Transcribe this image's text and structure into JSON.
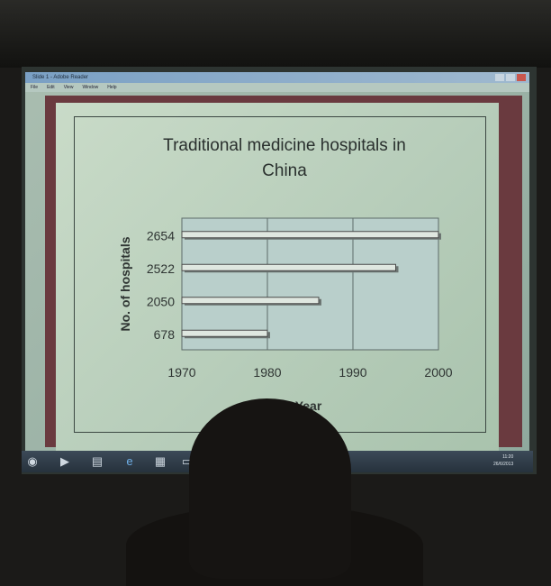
{
  "window": {
    "title": "Slide 1 - Adobe Reader",
    "menu": [
      "File",
      "Edit",
      "View",
      "Window",
      "Help"
    ]
  },
  "slide": {
    "title_line1": "Traditional medicine hospitals in",
    "title_line2": "China"
  },
  "chart_data": {
    "type": "bar",
    "orientation": "horizontal",
    "title": "Traditional medicine hospitals in China",
    "xlabel": "Year",
    "ylabel": "No. of hospitals",
    "xlim": [
      1970,
      2000
    ],
    "xticks": [
      1970,
      1980,
      1990,
      2000
    ],
    "categories": [
      "678",
      "2050",
      "2522",
      "2654"
    ],
    "values": [
      1980,
      1986,
      1995,
      2000
    ],
    "grid": true,
    "colors": {
      "bar": "#dfe7e0",
      "bar_edge": "#4a4a4a",
      "plot_bg": "#b9cfcb"
    }
  },
  "taskbar": {
    "icons": [
      "start-orb-icon",
      "media-player-icon",
      "folder-icon",
      "internet-explorer-icon",
      "paint-icon",
      "document-icon"
    ],
    "clock": "11:20",
    "date": "26/6/2013"
  }
}
